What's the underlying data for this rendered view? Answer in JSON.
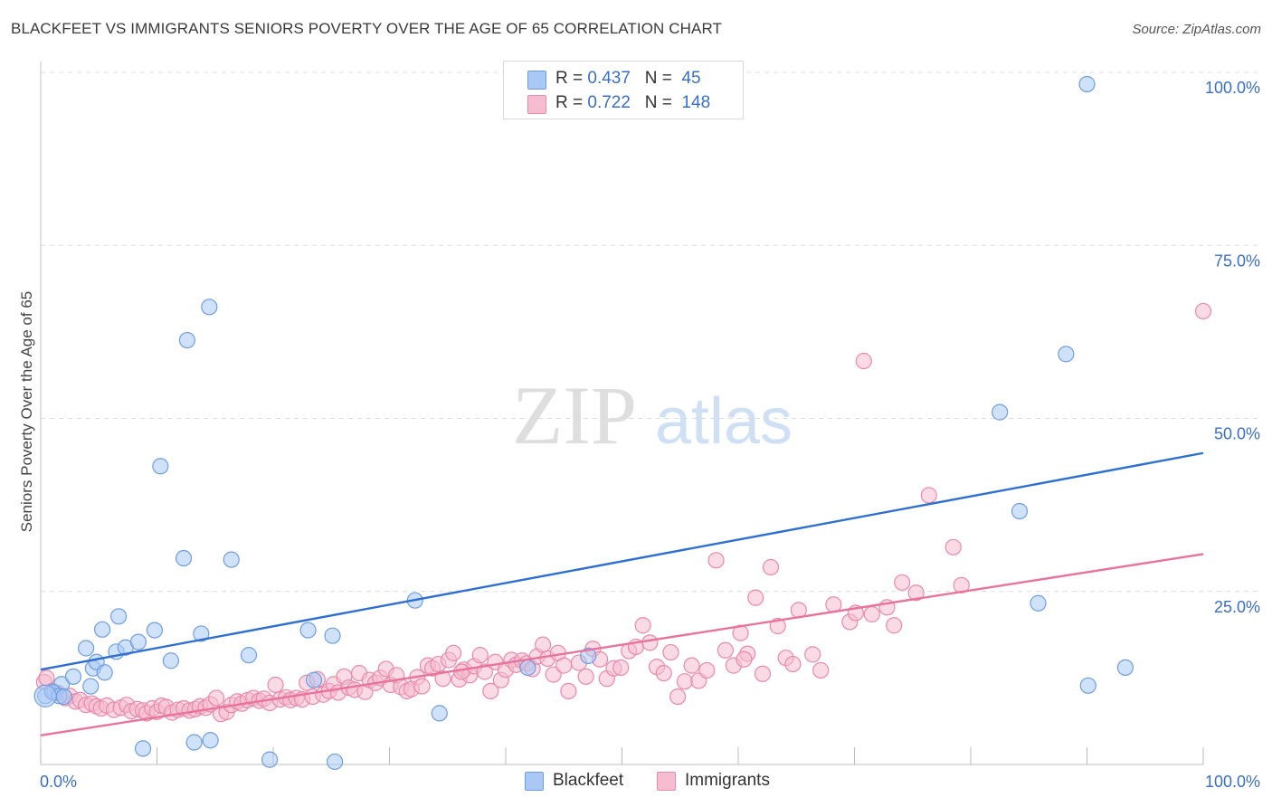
{
  "title": "BLACKFEET VS IMMIGRANTS SENIORS POVERTY OVER THE AGE OF 65 CORRELATION CHART",
  "source": "Source: ZipAtlas.com",
  "watermark": {
    "zip": "ZIP",
    "atlas": "atlas"
  },
  "legend_top": [
    {
      "r_label": "R =",
      "r_value": "0.437",
      "n_label": "N =",
      "n_value": "45",
      "color": "#a9c8f5",
      "border": "#6f9ee0"
    },
    {
      "r_label": "R =",
      "r_value": "0.722",
      "n_label": "N =",
      "n_value": "148",
      "color": "#f6bcd0",
      "border": "#e88aa9"
    }
  ],
  "legend_bottom": [
    {
      "label": "Blackfeet",
      "color": "#a9c8f5",
      "border": "#6f9ee0"
    },
    {
      "label": "Immigrants",
      "color": "#f6bcd0",
      "border": "#e88aa9"
    }
  ],
  "chart_data": {
    "type": "scatter",
    "title": "BLACKFEET VS IMMIGRANTS SENIORS POVERTY OVER THE AGE OF 65 CORRELATION CHART",
    "xlabel": "",
    "ylabel": "Seniors Poverty Over the Age of 65",
    "xlim": [
      0,
      100
    ],
    "ylim": [
      0,
      100
    ],
    "x_tick_labels": [
      "0.0%",
      "100.0%"
    ],
    "y_tick_labels": [
      "25.0%",
      "50.0%",
      "75.0%",
      "100.0%"
    ],
    "y_ticks": [
      25,
      50,
      75,
      100
    ],
    "grid": true,
    "legend_position": "top-center",
    "series": [
      {
        "name": "Blackfeet",
        "color": "#a9c8f5",
        "stroke": "#6f9ee0",
        "line_color": "#2f6fcf",
        "trend": [
          [
            0,
            13.7
          ],
          [
            100,
            45.0
          ]
        ],
        "points": [
          [
            0.4,
            9.9
          ],
          [
            1.2,
            10.4
          ],
          [
            1.8,
            11.6
          ],
          [
            2.8,
            12.7
          ],
          [
            3.9,
            16.8
          ],
          [
            4.3,
            11.3
          ],
          [
            4.5,
            13.9
          ],
          [
            4.8,
            14.8
          ],
          [
            5.3,
            19.5
          ],
          [
            5.5,
            13.3
          ],
          [
            6.5,
            16.3
          ],
          [
            6.7,
            21.4
          ],
          [
            7.3,
            16.9
          ],
          [
            8.4,
            17.7
          ],
          [
            8.8,
            2.3
          ],
          [
            9.8,
            19.4
          ],
          [
            10.3,
            43.1
          ],
          [
            11.2,
            15.0
          ],
          [
            12.3,
            29.8
          ],
          [
            12.6,
            61.3
          ],
          [
            13.2,
            3.2
          ],
          [
            13.8,
            18.9
          ],
          [
            14.5,
            66.1
          ],
          [
            14.6,
            3.5
          ],
          [
            16.4,
            29.6
          ],
          [
            17.9,
            15.8
          ],
          [
            19.7,
            0.7
          ],
          [
            23.0,
            19.4
          ],
          [
            23.5,
            12.2
          ],
          [
            25.1,
            18.6
          ],
          [
            25.3,
            0.4
          ],
          [
            32.2,
            23.7
          ],
          [
            34.3,
            7.4
          ],
          [
            41.9,
            14.0
          ],
          [
            47.1,
            15.7
          ],
          [
            82.5,
            50.9
          ],
          [
            84.2,
            36.6
          ],
          [
            85.8,
            23.3
          ],
          [
            88.2,
            59.3
          ],
          [
            90.1,
            11.4
          ],
          [
            90.0,
            98.3
          ],
          [
            93.3,
            14.0
          ],
          [
            1.0,
            10.5
          ],
          [
            1.6,
            9.9
          ],
          [
            2.0,
            9.8
          ]
        ]
      },
      {
        "name": "Immigrants",
        "color": "#f6bcd0",
        "stroke": "#e88aa9",
        "line_color": "#e8739c",
        "trend": [
          [
            0,
            4.2
          ],
          [
            100,
            30.4
          ]
        ],
        "points": [
          [
            0.3,
            11.9
          ],
          [
            0.5,
            12.5
          ],
          [
            1.0,
            10.6
          ],
          [
            1.5,
            10.3
          ],
          [
            2.1,
            9.6
          ],
          [
            2.5,
            9.9
          ],
          [
            3.0,
            9.1
          ],
          [
            3.4,
            9.3
          ],
          [
            3.9,
            8.6
          ],
          [
            4.4,
            8.8
          ],
          [
            4.8,
            8.4
          ],
          [
            5.2,
            8.1
          ],
          [
            5.7,
            8.5
          ],
          [
            6.3,
            7.9
          ],
          [
            6.9,
            8.2
          ],
          [
            7.4,
            8.6
          ],
          [
            7.8,
            7.7
          ],
          [
            8.3,
            8.0
          ],
          [
            8.8,
            7.8
          ],
          [
            9.1,
            7.4
          ],
          [
            9.6,
            8.1
          ],
          [
            10.0,
            7.6
          ],
          [
            10.4,
            8.5
          ],
          [
            10.8,
            8.3
          ],
          [
            11.3,
            7.5
          ],
          [
            11.8,
            7.9
          ],
          [
            12.3,
            8.1
          ],
          [
            12.8,
            7.8
          ],
          [
            13.3,
            8.0
          ],
          [
            13.7,
            8.4
          ],
          [
            14.2,
            8.2
          ],
          [
            14.6,
            8.7
          ],
          [
            15.1,
            9.6
          ],
          [
            15.5,
            7.3
          ],
          [
            16.0,
            7.6
          ],
          [
            16.4,
            8.6
          ],
          [
            16.9,
            9.1
          ],
          [
            17.3,
            8.8
          ],
          [
            17.8,
            9.3
          ],
          [
            18.3,
            9.6
          ],
          [
            18.8,
            9.2
          ],
          [
            19.2,
            9.5
          ],
          [
            19.7,
            8.9
          ],
          [
            20.2,
            11.5
          ],
          [
            20.6,
            9.4
          ],
          [
            21.1,
            9.7
          ],
          [
            21.5,
            9.3
          ],
          [
            22.0,
            9.6
          ],
          [
            22.5,
            9.4
          ],
          [
            22.9,
            11.8
          ],
          [
            23.4,
            9.8
          ],
          [
            23.8,
            12.3
          ],
          [
            24.3,
            10.1
          ],
          [
            24.8,
            10.6
          ],
          [
            25.2,
            11.6
          ],
          [
            25.6,
            10.4
          ],
          [
            26.1,
            12.7
          ],
          [
            26.5,
            11.1
          ],
          [
            27.0,
            10.8
          ],
          [
            27.4,
            13.2
          ],
          [
            27.9,
            10.5
          ],
          [
            28.3,
            12.2
          ],
          [
            28.8,
            11.8
          ],
          [
            29.2,
            12.5
          ],
          [
            29.7,
            13.8
          ],
          [
            30.1,
            11.5
          ],
          [
            30.6,
            12.9
          ],
          [
            31.0,
            11.2
          ],
          [
            31.5,
            10.6
          ],
          [
            31.9,
            10.9
          ],
          [
            32.4,
            12.6
          ],
          [
            32.8,
            11.3
          ],
          [
            33.3,
            14.3
          ],
          [
            33.7,
            13.9
          ],
          [
            34.2,
            14.5
          ],
          [
            34.6,
            12.4
          ],
          [
            35.1,
            15.1
          ],
          [
            35.5,
            16.1
          ],
          [
            36.0,
            12.3
          ],
          [
            36.4,
            13.7
          ],
          [
            36.9,
            12.9
          ],
          [
            37.3,
            14.2
          ],
          [
            37.8,
            15.8
          ],
          [
            38.2,
            13.4
          ],
          [
            38.7,
            10.6
          ],
          [
            39.1,
            14.8
          ],
          [
            39.6,
            12.2
          ],
          [
            40.0,
            13.7
          ],
          [
            40.5,
            15.1
          ],
          [
            40.9,
            14.4
          ],
          [
            41.4,
            15.0
          ],
          [
            41.8,
            14.6
          ],
          [
            42.3,
            13.8
          ],
          [
            42.7,
            15.6
          ],
          [
            43.2,
            17.3
          ],
          [
            43.6,
            15.3
          ],
          [
            44.1,
            13.0
          ],
          [
            44.5,
            16.1
          ],
          [
            45.0,
            14.3
          ],
          [
            45.4,
            10.6
          ],
          [
            46.3,
            14.7
          ],
          [
            46.9,
            12.7
          ],
          [
            47.5,
            16.7
          ],
          [
            48.1,
            15.2
          ],
          [
            48.7,
            12.4
          ],
          [
            49.3,
            13.9
          ],
          [
            49.9,
            14.0
          ],
          [
            50.6,
            16.4
          ],
          [
            51.2,
            17.0
          ],
          [
            51.8,
            20.1
          ],
          [
            52.4,
            17.6
          ],
          [
            53.0,
            14.1
          ],
          [
            53.6,
            13.2
          ],
          [
            54.2,
            16.2
          ],
          [
            54.8,
            9.8
          ],
          [
            55.4,
            12.0
          ],
          [
            56.0,
            14.3
          ],
          [
            56.6,
            12.1
          ],
          [
            57.3,
            13.6
          ],
          [
            58.1,
            29.5
          ],
          [
            58.9,
            16.5
          ],
          [
            59.6,
            14.3
          ],
          [
            60.2,
            19.0
          ],
          [
            60.8,
            16.0
          ],
          [
            61.5,
            24.1
          ],
          [
            62.1,
            13.1
          ],
          [
            62.8,
            28.5
          ],
          [
            63.4,
            20.0
          ],
          [
            64.1,
            15.4
          ],
          [
            64.7,
            14.5
          ],
          [
            65.2,
            22.3
          ],
          [
            66.4,
            15.9
          ],
          [
            67.1,
            13.6
          ],
          [
            68.2,
            23.1
          ],
          [
            69.6,
            20.6
          ],
          [
            70.1,
            21.9
          ],
          [
            70.8,
            58.3
          ],
          [
            71.5,
            21.7
          ],
          [
            72.8,
            22.7
          ],
          [
            73.4,
            20.1
          ],
          [
            74.1,
            26.3
          ],
          [
            75.3,
            24.8
          ],
          [
            76.4,
            38.9
          ],
          [
            78.5,
            31.4
          ],
          [
            79.2,
            25.9
          ],
          [
            100.0,
            65.5
          ],
          [
            36.2,
            13.4
          ],
          [
            60.5,
            15.2
          ]
        ]
      }
    ]
  }
}
